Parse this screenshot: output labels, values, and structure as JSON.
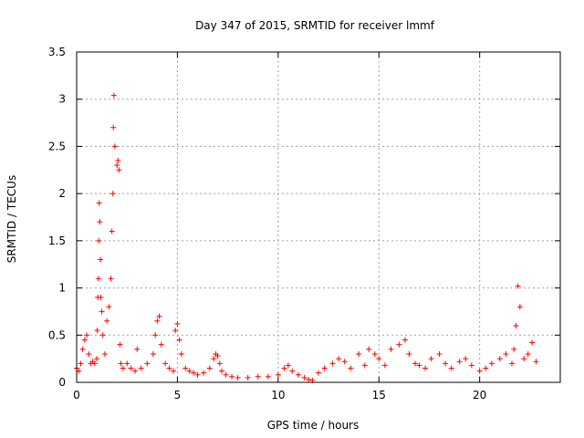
{
  "chart_data": {
    "type": "scatter",
    "title": "Day 347 of 2015, SRMTID for receiver lmmf",
    "xlabel": "GPS time / hours",
    "ylabel": "SRMTID / TECUs",
    "xlim": [
      0,
      24
    ],
    "ylim": [
      0,
      3.5
    ],
    "xticks": [
      0,
      5,
      10,
      15,
      20
    ],
    "xtick_labels": [
      "0",
      "5",
      "10",
      "15",
      "20"
    ],
    "yticks": [
      0,
      0.5,
      1,
      1.5,
      2,
      2.5,
      3,
      3.5
    ],
    "ytick_labels": [
      "0",
      "0.5",
      "1",
      "1.5",
      "2",
      "2.5",
      "3",
      "3.5"
    ],
    "grid": true,
    "marker": "+",
    "color": "#ff0000",
    "series": [
      {
        "name": "SRMTID",
        "x": [
          0.0,
          0.1,
          0.2,
          0.3,
          0.4,
          0.5,
          0.6,
          0.7,
          0.8,
          0.9,
          1.0,
          1.02,
          1.05,
          1.08,
          1.1,
          1.12,
          1.15,
          1.18,
          1.2,
          1.25,
          1.3,
          1.4,
          1.5,
          1.6,
          1.7,
          1.75,
          1.8,
          1.82,
          1.85,
          1.9,
          2.0,
          2.05,
          2.1,
          2.15,
          2.2,
          2.3,
          2.5,
          2.7,
          2.9,
          3.0,
          3.2,
          3.5,
          3.8,
          3.9,
          4.0,
          4.1,
          4.2,
          4.4,
          4.6,
          4.8,
          4.9,
          5.0,
          5.1,
          5.2,
          5.4,
          5.6,
          5.8,
          6.0,
          6.3,
          6.6,
          6.8,
          6.9,
          7.0,
          7.1,
          7.2,
          7.4,
          7.7,
          8.0,
          8.5,
          9.0,
          9.5,
          10.0,
          10.3,
          10.5,
          10.7,
          11.0,
          11.3,
          11.5,
          11.7,
          12.0,
          12.3,
          12.7,
          13.0,
          13.3,
          13.6,
          14.0,
          14.3,
          14.5,
          14.8,
          15.0,
          15.3,
          15.6,
          16.0,
          16.3,
          16.5,
          16.8,
          17.0,
          17.3,
          17.6,
          18.0,
          18.3,
          18.6,
          19.0,
          19.3,
          19.6,
          20.0,
          20.3,
          20.6,
          21.0,
          21.3,
          21.6,
          21.7,
          21.8,
          21.9,
          22.0,
          22.2,
          22.4,
          22.6,
          22.8
        ],
        "y": [
          0.15,
          0.12,
          0.2,
          0.35,
          0.45,
          0.5,
          0.3,
          0.2,
          0.22,
          0.2,
          0.25,
          0.55,
          0.9,
          1.1,
          1.5,
          1.9,
          1.7,
          1.3,
          0.9,
          0.75,
          0.5,
          0.3,
          0.65,
          0.8,
          1.1,
          1.6,
          2.0,
          2.7,
          3.04,
          2.5,
          2.3,
          2.35,
          2.25,
          0.4,
          0.2,
          0.15,
          0.2,
          0.15,
          0.12,
          0.35,
          0.15,
          0.2,
          0.3,
          0.5,
          0.65,
          0.7,
          0.4,
          0.2,
          0.15,
          0.12,
          0.55,
          0.62,
          0.45,
          0.3,
          0.15,
          0.12,
          0.1,
          0.08,
          0.1,
          0.15,
          0.25,
          0.3,
          0.28,
          0.2,
          0.12,
          0.08,
          0.06,
          0.05,
          0.05,
          0.06,
          0.06,
          0.08,
          0.15,
          0.18,
          0.12,
          0.08,
          0.05,
          0.03,
          0.02,
          0.1,
          0.15,
          0.2,
          0.25,
          0.22,
          0.15,
          0.3,
          0.18,
          0.35,
          0.3,
          0.25,
          0.18,
          0.35,
          0.4,
          0.45,
          0.3,
          0.2,
          0.18,
          0.15,
          0.25,
          0.3,
          0.2,
          0.15,
          0.22,
          0.25,
          0.18,
          0.12,
          0.15,
          0.2,
          0.25,
          0.3,
          0.2,
          0.35,
          0.6,
          1.02,
          0.8,
          0.25,
          0.3,
          0.42,
          0.22
        ]
      }
    ]
  }
}
